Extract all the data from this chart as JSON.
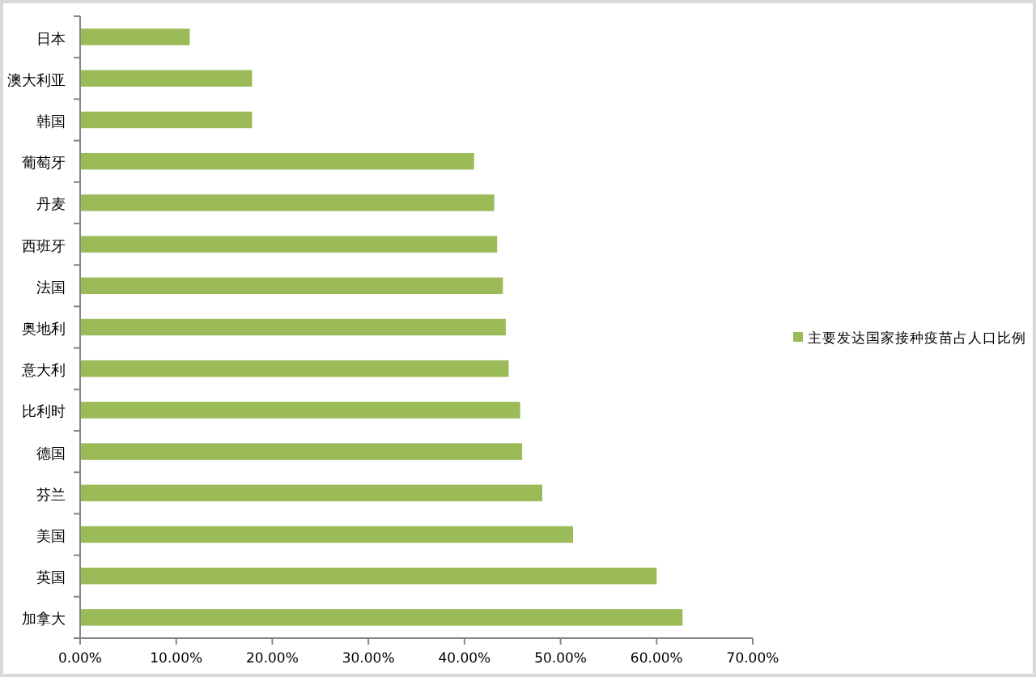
{
  "chart_data": {
    "type": "bar",
    "orientation": "horizontal",
    "categories": [
      "日本",
      "澳大利亚",
      "韩国",
      "葡萄牙",
      "丹麦",
      "西班牙",
      "法国",
      "奥地利",
      "意大利",
      "比利时",
      "德国",
      "芬兰",
      "美国",
      "英国",
      "加拿大"
    ],
    "series": [
      {
        "name": "主要发达国家接种疫苗占人口比例",
        "color": "#9bbb59",
        "values": [
          11.4,
          17.9,
          17.9,
          41.0,
          43.1,
          43.4,
          44.0,
          44.3,
          44.6,
          45.8,
          46.0,
          48.1,
          51.3,
          60.0,
          62.7
        ]
      }
    ],
    "xlim": [
      0,
      70
    ],
    "xticks": [
      {
        "value": 0,
        "label": "0.00%"
      },
      {
        "value": 10,
        "label": "10.00%"
      },
      {
        "value": 20,
        "label": "20.00%"
      },
      {
        "value": 30,
        "label": "30.00%"
      },
      {
        "value": 40,
        "label": "40.00%"
      },
      {
        "value": 50,
        "label": "50.00%"
      },
      {
        "value": 60,
        "label": "60.00%"
      },
      {
        "value": 70,
        "label": "70.00%"
      }
    ],
    "legend": "right"
  }
}
